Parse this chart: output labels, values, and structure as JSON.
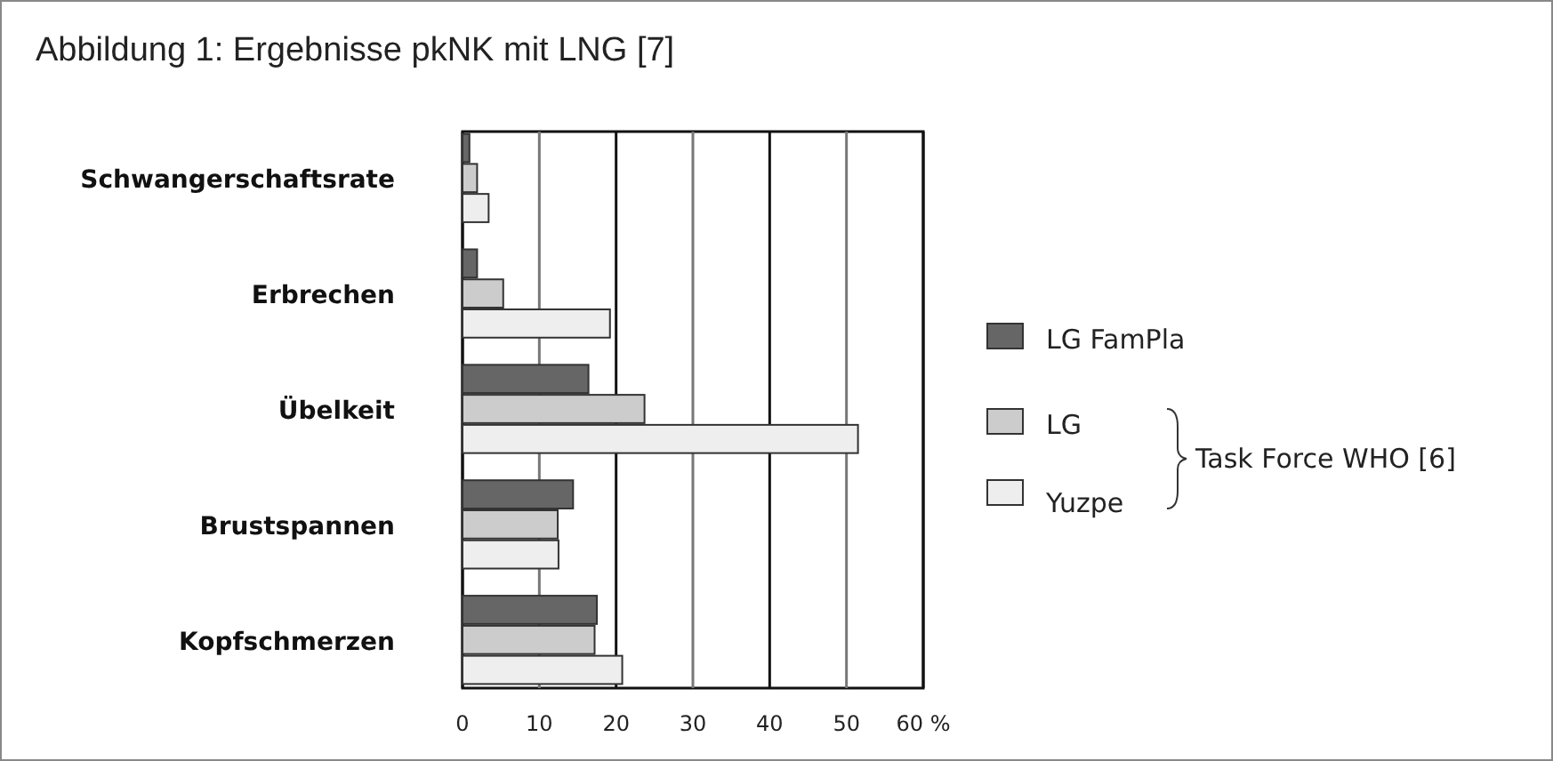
{
  "chart_data": {
    "type": "bar",
    "orientation": "horizontal",
    "title": "Abbildung 1: Ergebnisse pkNK mit LNG [7]",
    "categories": [
      "Schwangerschaftsrate",
      "Erbrechen",
      "Übelkeit",
      "Brustspannen",
      "Kopfschmerzen"
    ],
    "series": [
      {
        "name": "LG  FamPla",
        "color": "#666666",
        "values": [
          0.9,
          1.9,
          16.4,
          14.4,
          17.5
        ]
      },
      {
        "name": "LG",
        "color": "#cccccc",
        "values": [
          1.9,
          5.3,
          23.7,
          12.4,
          17.2
        ]
      },
      {
        "name": "Yuzpe",
        "color": "#eeeeee",
        "values": [
          3.4,
          19.2,
          51.5,
          12.5,
          20.8
        ]
      }
    ],
    "xlim": [
      0,
      60
    ],
    "xticks": [
      0,
      10,
      20,
      30,
      40,
      50,
      {
        "value": 60,
        "label": "60 %"
      }
    ],
    "grid": "x",
    "legend": "right",
    "annotations": [
      "Task Force WHO [6]"
    ]
  }
}
